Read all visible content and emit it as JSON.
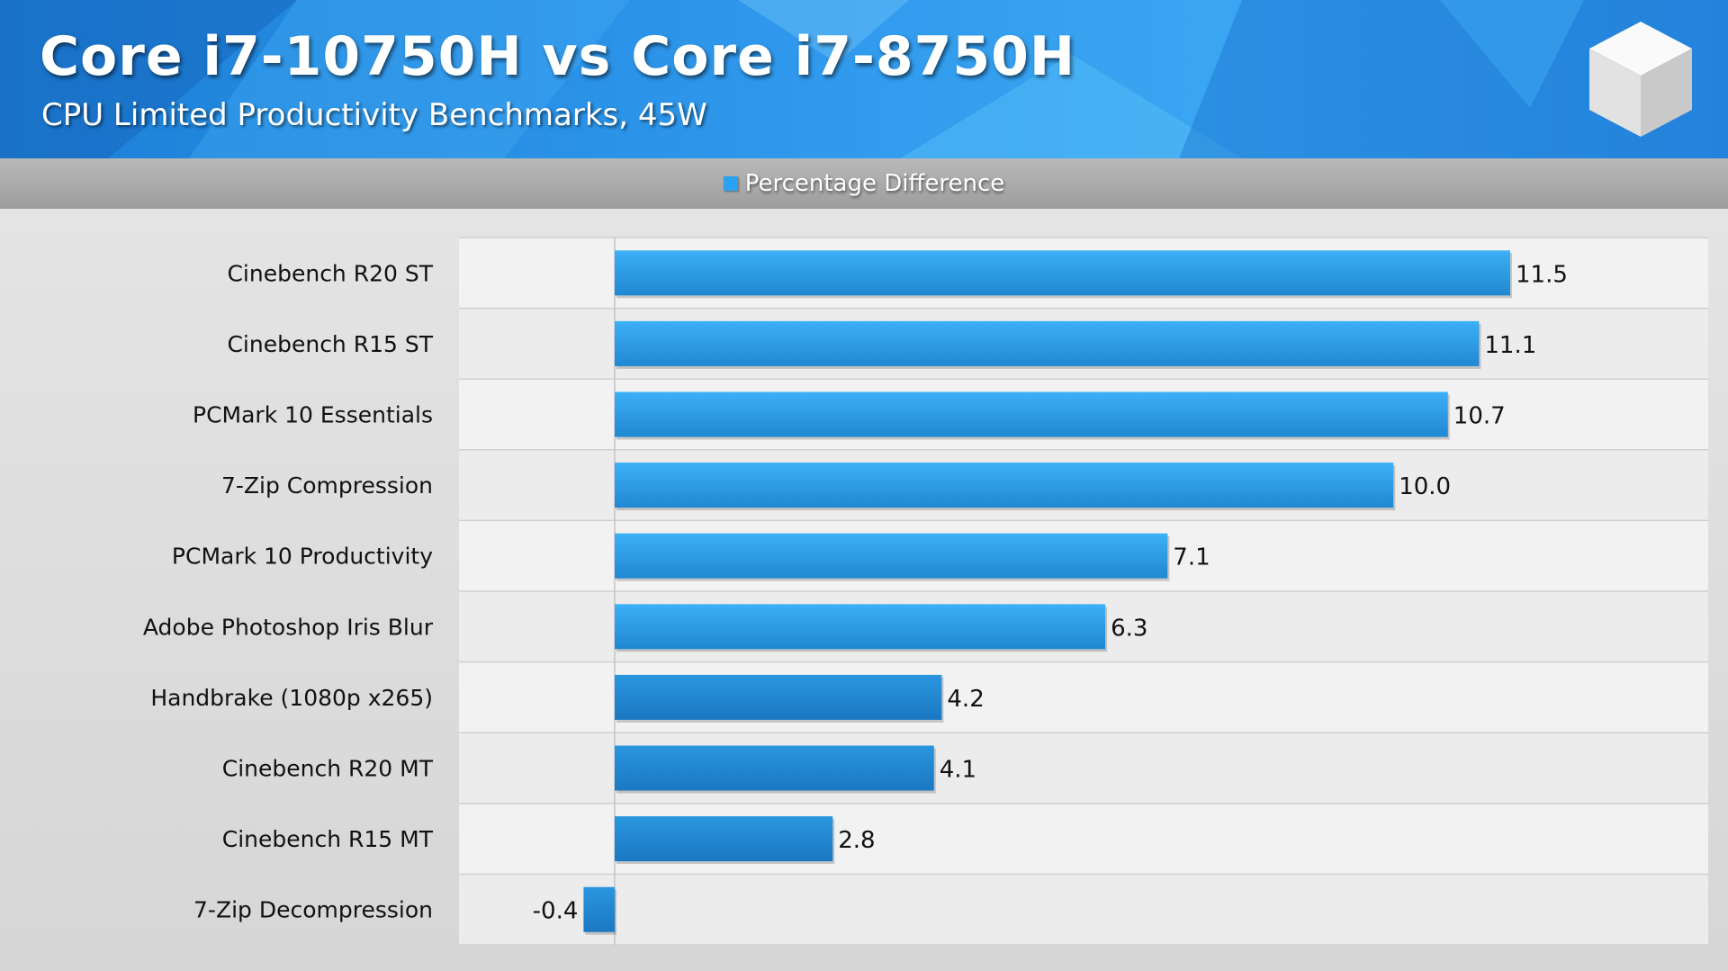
{
  "header": {
    "title": "Core i7-10750H vs Core i7-8750H",
    "subtitle": "CPU Limited Productivity Benchmarks, 45W"
  },
  "colors": {
    "bar": "#2aa2f0",
    "bar_dark": "#1f88d2",
    "header_blue": "#2f98ec"
  },
  "icons": {
    "logo": "cube-logo-icon"
  },
  "chart_data": {
    "type": "bar",
    "orientation": "horizontal",
    "title": "Core i7-10750H vs Core i7-8750H",
    "subtitle": "CPU Limited Productivity Benchmarks, 45W",
    "legend": {
      "position": "top-center",
      "entries": [
        "Percentage Difference"
      ]
    },
    "categories": [
      "Cinebench R20 ST",
      "Cinebench R15 ST",
      "PCMark 10 Essentials",
      "7-Zip Compression",
      "PCMark 10 Productivity",
      "Adobe Photoshop Iris Blur",
      "Handbrake (1080p x265)",
      "Cinebench R20 MT",
      "Cinebench R15 MT",
      "7-Zip Decompression"
    ],
    "series": [
      {
        "name": "Percentage Difference",
        "values": [
          11.5,
          11.1,
          10.7,
          10.0,
          7.1,
          6.3,
          4.2,
          4.1,
          2.8,
          -0.4
        ],
        "labels": [
          "11.5",
          "11.1",
          "10.7",
          "10.0",
          "7.1",
          "6.3",
          "4.2",
          "4.1",
          "2.8",
          "-0.4"
        ]
      }
    ],
    "xlim": [
      -2,
      14
    ],
    "grid": "horizontal-row-separators",
    "xlabel": "",
    "ylabel": ""
  }
}
